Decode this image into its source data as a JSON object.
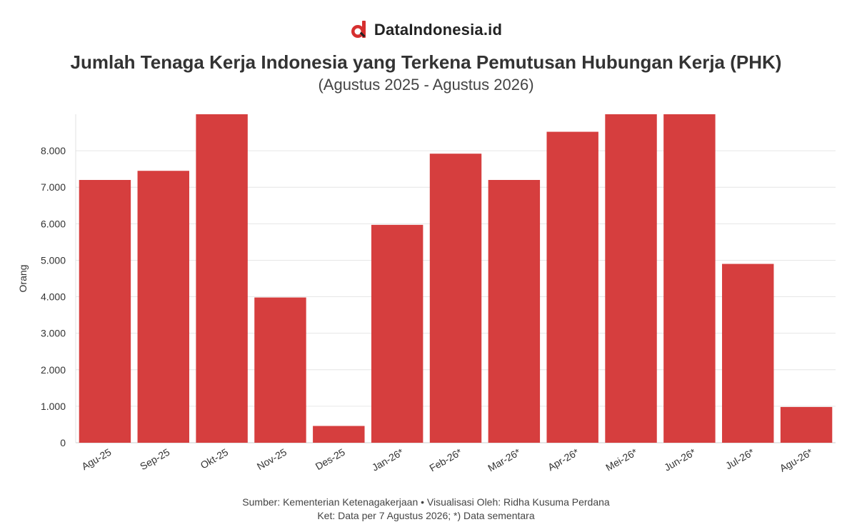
{
  "brand": {
    "name": "DataIndonesia.id",
    "logo_icon": "dataindonesia-logo-icon",
    "accent": "#d62f2f"
  },
  "header": {
    "title": "Jumlah Tenaga Kerja Indonesia yang Terkena Pemutusan Hubungan Kerja (PHK)",
    "subtitle": "(Agustus 2025 - Agustus 2026)"
  },
  "chart_data": {
    "type": "bar",
    "categories": [
      "Agu-25",
      "Sep-25",
      "Okt-25",
      "Nov-25",
      "Des-25",
      "Jan-26*",
      "Feb-26*",
      "Mar-26*",
      "Apr-26*",
      "Mei-26*",
      "Jun-26*",
      "Jul-26*",
      "Agu-26*"
    ],
    "values": [
      7200,
      7450,
      9000,
      3980,
      460,
      5970,
      7920,
      7200,
      8520,
      9000,
      9000,
      4900,
      980
    ],
    "ylabel": "Orang",
    "xlabel": "",
    "ylim": [
      0,
      9000
    ],
    "yticks": [
      0,
      1000,
      2000,
      3000,
      4000,
      5000,
      6000,
      7000,
      8000
    ],
    "ytick_labels": [
      "0",
      "1.000",
      "2.000",
      "3.000",
      "4.000",
      "5.000",
      "6.000",
      "7.000",
      "8.000"
    ],
    "bar_color": "#d63e3e",
    "grid": true,
    "legend": "none"
  },
  "footer": {
    "source": "Sumber: Kementerian Ketenagakerjaan • Visualisasi Oleh: Ridha Kusuma Perdana",
    "note": "Ket: Data per 7 Agustus 2026; *) Data sementara"
  }
}
